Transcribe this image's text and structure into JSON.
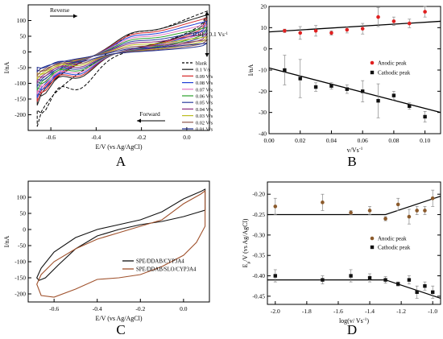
{
  "chart_data": [
    {
      "panel": "A",
      "type": "line",
      "xlabel": "E/V (vs Ag/AgCl)",
      "ylabel": "I/nA",
      "xlim": [
        -0.7,
        0.1
      ],
      "ylim": [
        -250,
        150
      ],
      "xticks": [
        "-0.6",
        "-0.4",
        "-0.2",
        "0.0"
      ],
      "yticks": [
        "-200",
        "-150",
        "-100",
        "-50",
        "0",
        "50",
        "100"
      ],
      "grid": false,
      "legend_position": "right",
      "annotations": {
        "reverse": "Reverse",
        "forward": "Forward",
        "range": "0.01 - 0.1 Vs"
      },
      "series": [
        {
          "name": "blank",
          "color": "#000000",
          "dashed": true,
          "scale": 1.4,
          "vertexCurrent": 130
        },
        {
          "name": "0.1 V/s",
          "color": "#1a1a1a",
          "scale": 1.0,
          "vertexCurrent": 118
        },
        {
          "name": "0.09 V/s",
          "color": "#d62728",
          "scale": 0.93,
          "vertexCurrent": 108
        },
        {
          "name": "0.08 V/s",
          "color": "#1f3fd6",
          "scale": 0.86,
          "vertexCurrent": 98
        },
        {
          "name": "0.07 V/s",
          "color": "#e377c2",
          "scale": 0.79,
          "vertexCurrent": 88
        },
        {
          "name": "0.06 V/s",
          "color": "#2ca02c",
          "scale": 0.72,
          "vertexCurrent": 78
        },
        {
          "name": "0.05 V/s",
          "color": "#2c3e9e",
          "scale": 0.65,
          "vertexCurrent": 68
        },
        {
          "name": "0.04 V/s",
          "color": "#8c2d7d",
          "scale": 0.58,
          "vertexCurrent": 58
        },
        {
          "name": "0.03 V/s",
          "color": "#bcbd22",
          "scale": 0.51,
          "vertexCurrent": 48
        },
        {
          "name": "0.02 V/s",
          "color": "#8c564b",
          "scale": 0.44,
          "vertexCurrent": 38
        },
        {
          "name": "0.01 V/s",
          "color": "#1f2d8f",
          "scale": 0.37,
          "vertexCurrent": 28
        }
      ]
    },
    {
      "panel": "B",
      "type": "scatter",
      "xlabel": "v/Vs",
      "ylabel": "I/nA",
      "xlim": [
        0.0,
        0.11
      ],
      "ylim": [
        -40,
        20
      ],
      "xticks": [
        "0.00",
        "0.02",
        "0.04",
        "0.06",
        "0.08",
        "0.10"
      ],
      "yticks": [
        "-40",
        "-30",
        "-20",
        "-10",
        "0",
        "10",
        "20"
      ],
      "legend_position": "right",
      "series": [
        {
          "name": "Anodic peak",
          "color": "#e02020",
          "marker": "circle",
          "x": [
            0.01,
            0.02,
            0.03,
            0.04,
            0.05,
            0.06,
            0.07,
            0.08,
            0.09,
            0.1
          ],
          "y": [
            8.5,
            7.5,
            8.5,
            7.5,
            9,
            9.5,
            15,
            13,
            12,
            17.5
          ],
          "err": [
            0.8,
            3,
            2.5,
            1,
            1.5,
            2.5,
            4.5,
            2,
            2,
            2.5
          ],
          "fit": [
            [
              0.0,
              8
            ],
            [
              0.11,
              13
            ]
          ]
        },
        {
          "name": "Cathodic peak",
          "color": "#111111",
          "marker": "square",
          "x": [
            0.01,
            0.02,
            0.03,
            0.04,
            0.05,
            0.06,
            0.07,
            0.08,
            0.09,
            0.1
          ],
          "y": [
            -10,
            -14,
            -18,
            -17.5,
            -19,
            -20,
            -24.5,
            -22,
            -27,
            -32
          ],
          "err": [
            7,
            9,
            2,
            1.5,
            2,
            5,
            8,
            2,
            1.5,
            2.5
          ],
          "fit": [
            [
              0.0,
              -9
            ],
            [
              0.11,
              -30
            ]
          ]
        }
      ]
    },
    {
      "panel": "C",
      "type": "line",
      "xlabel": "E/V (vs Ag/AgCl)",
      "ylabel": "I/nA",
      "xlim": [
        -0.72,
        0.12
      ],
      "ylim": [
        -225,
        150
      ],
      "xticks": [
        "-0.6",
        "-0.4",
        "-0.2",
        "0.0"
      ],
      "yticks": [
        "-200",
        "-150",
        "-100",
        "-50",
        "0",
        "50",
        "100"
      ],
      "legend_position": "bottom-right",
      "series": [
        {
          "name": "SPE/DDAB/CYP3A4",
          "color": "#111111"
        },
        {
          "name": "SPE/DDAB/SLO/CYP3A4",
          "color": "#a0522d"
        }
      ]
    },
    {
      "panel": "D",
      "type": "scatter",
      "xlabel": "log(v/ Vs)",
      "ylabel": "E/V (vs Ag/AgCl)",
      "xlim": [
        -2.05,
        -0.95
      ],
      "ylim": [
        -0.47,
        -0.17
      ],
      "xticks": [
        "-2.0",
        "-1.8",
        "-1.6",
        "-1.4",
        "-1.2",
        "-1.0"
      ],
      "yticks": [
        "-0.45",
        "-0.40",
        "-0.35",
        "-0.30",
        "-0.25",
        "-0.20"
      ],
      "legend_position": "center-right",
      "series": [
        {
          "name": "Anodic peak",
          "color": "#8b5a2b",
          "marker": "circle",
          "x": [
            -2.0,
            -1.7,
            -1.52,
            -1.4,
            -1.3,
            -1.22,
            -1.15,
            -1.1,
            -1.05,
            -1.0
          ],
          "y": [
            -0.23,
            -0.22,
            -0.245,
            -0.24,
            -0.26,
            -0.225,
            -0.255,
            -0.24,
            -0.24,
            -0.21
          ],
          "err": [
            0.02,
            0.02,
            0.005,
            0.01,
            0.005,
            0.015,
            0.018,
            0.01,
            0.01,
            0.02
          ],
          "fit": [
            [
              -2.05,
              -0.25
            ],
            [
              -1.3,
              -0.25
            ],
            [
              -0.95,
              -0.205
            ]
          ]
        },
        {
          "name": "Cathodic peak",
          "color": "#111111",
          "marker": "square",
          "x": [
            -2.0,
            -1.7,
            -1.52,
            -1.4,
            -1.3,
            -1.22,
            -1.15,
            -1.1,
            -1.05,
            -1.0
          ],
          "y": [
            -0.4,
            -0.41,
            -0.4,
            -0.405,
            -0.41,
            -0.42,
            -0.41,
            -0.44,
            -0.425,
            -0.44
          ],
          "err": [
            0.015,
            0.01,
            0.015,
            0.01,
            0.008,
            0.005,
            0.01,
            0.015,
            0.01,
            0.015
          ],
          "fit": [
            [
              -2.05,
              -0.41
            ],
            [
              -1.3,
              -0.41
            ],
            [
              -0.95,
              -0.455
            ]
          ]
        }
      ]
    }
  ],
  "panel_labels": {
    "a": "A",
    "b": "B",
    "c": "C",
    "d": "D"
  }
}
